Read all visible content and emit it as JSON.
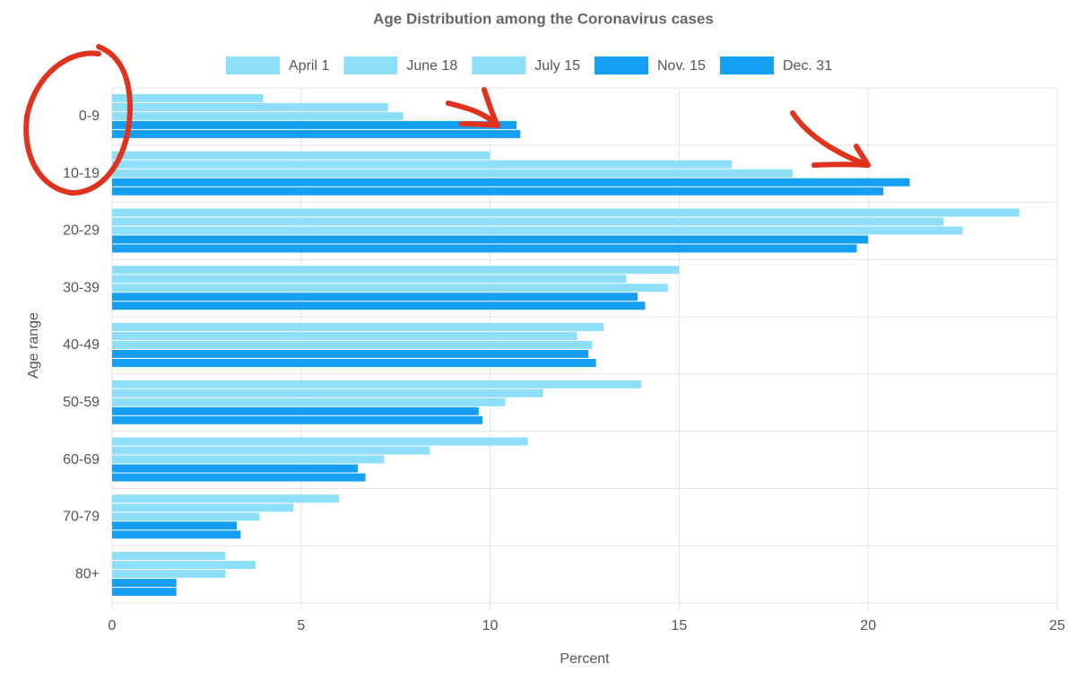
{
  "chart_data": {
    "type": "hbar",
    "title": "Age Distribution among the Coronavirus cases",
    "x_label": "Percent",
    "y_label": "Age range",
    "categories": [
      "0-9",
      "10-19",
      "20-29",
      "30-39",
      "40-49",
      "50-59",
      "60-69",
      "70-79",
      "80+"
    ],
    "series": [
      {
        "name": "April 1",
        "color": "#8ddff9",
        "values": [
          4.0,
          10.0,
          24.0,
          15.0,
          13.0,
          14.0,
          11.0,
          6.0,
          3.0
        ]
      },
      {
        "name": "June 18",
        "color": "#8ddff9",
        "values": [
          7.3,
          16.4,
          22.0,
          13.6,
          12.3,
          11.4,
          8.4,
          4.8,
          3.8
        ]
      },
      {
        "name": "July 15",
        "color": "#8ddff9",
        "values": [
          7.7,
          18.0,
          22.5,
          14.7,
          12.7,
          10.4,
          7.2,
          3.9,
          3.0
        ]
      },
      {
        "name": "Nov. 15",
        "color": "#149ff3",
        "values": [
          10.7,
          21.1,
          20.0,
          13.9,
          12.6,
          9.7,
          6.5,
          3.3,
          1.7
        ]
      },
      {
        "name": "Dec. 31",
        "color": "#149ff3",
        "values": [
          10.8,
          20.4,
          19.7,
          14.1,
          12.8,
          9.8,
          6.7,
          3.4,
          1.7
        ]
      }
    ],
    "xlim": [
      0,
      25
    ],
    "xticks": [
      0,
      5,
      10,
      15,
      20,
      25
    ],
    "grid": true
  }
}
